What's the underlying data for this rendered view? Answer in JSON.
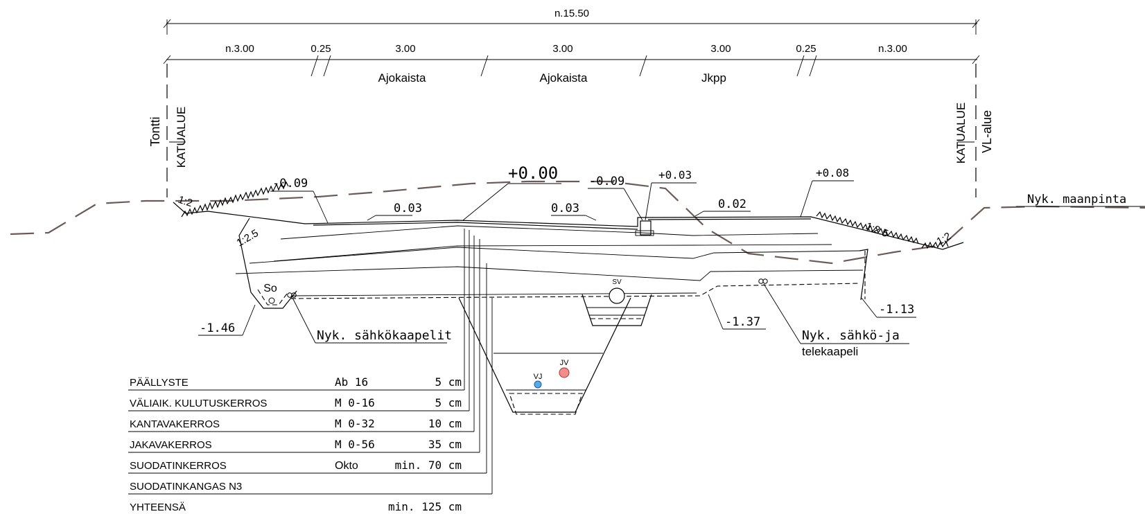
{
  "dimensions": {
    "total": "n.15.50",
    "segments": [
      "n.3.00",
      "0.25",
      "3.00",
      "3.00",
      "3.00",
      "0.25",
      "n.3.00"
    ],
    "lanes": [
      "Ajokaista",
      "Ajokaista",
      "Jkpp"
    ]
  },
  "boundaries": {
    "left_outer": "Tontti",
    "left_inner": "KATUALUE",
    "right_inner": "KATUALUE",
    "right_outer": "VL-alue"
  },
  "levels": {
    "center": "+0.00",
    "left_edge": "-0.09",
    "curb_left": "-0.09",
    "curb_right": "+0.03",
    "right_edge": "+0.08",
    "slope_left_lane": "0.03",
    "slope_right_lane": "0.03",
    "slope_jkpp": "0.02",
    "ditch_left": "-1.46",
    "pipe_right": "-1.37",
    "ditch_right": "-1.13"
  },
  "slopes": {
    "left_outer": "1:2",
    "left_inner": "1:2.5",
    "right_inner": "1:2.5",
    "right_outer": "1:2"
  },
  "annotations": {
    "existing_ground": "Nyk. maanpinta",
    "existing_cables_left": "Nyk. sähkökaapelit",
    "existing_cables_right_1": "Nyk. sähkö-ja",
    "existing_cables_right_2": "telekaapeli",
    "so": "So",
    "sv": "SV",
    "vj": "VJ",
    "jv": "JV"
  },
  "layers": [
    {
      "name": "PÄÄLLYSTE",
      "material": "Ab 16",
      "thickness": "5 cm"
    },
    {
      "name": "VÄLIAIK. KULUTUSKERROS",
      "material": "M 0-16",
      "thickness": "5 cm"
    },
    {
      "name": "KANTAVAKERROS",
      "material": "M 0-32",
      "thickness": "10 cm"
    },
    {
      "name": "JAKAVAKERROS",
      "material": "M 0-56",
      "thickness": "35 cm"
    },
    {
      "name": "SUODATINKERROS",
      "material": "Okto",
      "thickness": "min. 70 cm"
    },
    {
      "name": "SUODATINKANGAS N3",
      "material": "",
      "thickness": ""
    },
    {
      "name": "YHTEENSÄ",
      "material": "",
      "thickness": "min. 125 cm"
    }
  ],
  "colors": {
    "ground_line": "#6b5a55",
    "vj_pipe": "#5aa9e6",
    "jv_pipe": "#f08c8c"
  }
}
